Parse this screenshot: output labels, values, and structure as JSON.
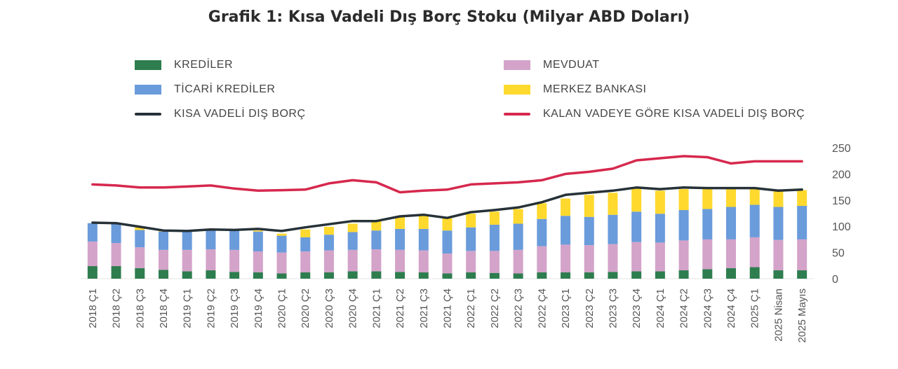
{
  "chart_data": {
    "type": "bar",
    "title": "Grafik 1: Kısa Vadeli Dış Borç Stoku (Milyar ABD Doları)",
    "categories": [
      "2018 Ç1",
      "2018 Ç2",
      "2018 Ç3",
      "2018 Ç4",
      "2019 Ç1",
      "2019 Ç2",
      "2019 Ç3",
      "2019 Ç4",
      "2020 Ç1",
      "2020 Ç2",
      "2020 Ç3",
      "2020 Ç4",
      "2021 Ç1",
      "2021 Ç2",
      "2021 Ç3",
      "2021 Ç4",
      "2022 Ç1",
      "2022 Ç2",
      "2022 Ç3",
      "2022 Ç4",
      "2023 Ç1",
      "2023 Ç2",
      "2023 Ç3",
      "2023 Ç4",
      "2024 Ç1",
      "2024 Ç2",
      "2024 Ç3",
      "2024 Ç4",
      "2025 Ç1",
      "2025 Nisan",
      "2025 Mayıs"
    ],
    "ylim": [
      0,
      250
    ],
    "yticks": [
      0,
      50,
      100,
      150,
      200,
      250
    ],
    "stacked": true,
    "series": [
      {
        "name": "KREDİLER",
        "kind": "bar",
        "color": "#2e7d4f",
        "values": [
          24,
          24,
          20,
          17,
          14,
          16,
          13,
          12,
          10,
          12,
          12,
          14,
          14,
          13,
          12,
          10,
          12,
          11,
          10,
          12,
          12,
          12,
          13,
          14,
          14,
          16,
          18,
          20,
          22,
          16,
          16
        ]
      },
      {
        "name": "MEVDUAT",
        "kind": "bar",
        "color": "#d4a3c9",
        "values": [
          47,
          44,
          40,
          38,
          41,
          40,
          42,
          40,
          40,
          40,
          42,
          41,
          42,
          42,
          42,
          38,
          41,
          42,
          45,
          50,
          53,
          52,
          53,
          56,
          55,
          57,
          57,
          55,
          57,
          58,
          59
        ]
      },
      {
        "name": "TİCARİ KREDİLER",
        "kind": "bar",
        "color": "#6a9bdb",
        "values": [
          35,
          37,
          33,
          35,
          35,
          36,
          37,
          38,
          32,
          27,
          30,
          34,
          36,
          40,
          41,
          44,
          45,
          50,
          50,
          52,
          55,
          54,
          56,
          58,
          55,
          58,
          58,
          62,
          62,
          63,
          64
        ]
      },
      {
        "name": "MERKEZ BANKASI",
        "kind": "bar",
        "color": "#ffd92e",
        "values": [
          0,
          0,
          5,
          1,
          0,
          1,
          0,
          2,
          4,
          15,
          15,
          16,
          18,
          22,
          25,
          24,
          26,
          25,
          28,
          30,
          33,
          42,
          42,
          44,
          44,
          40,
          38,
          34,
          32,
          30,
          30
        ]
      },
      {
        "name": "KISA VADELİ DIŞ BORÇ",
        "kind": "line",
        "color": "#263238",
        "values": [
          107,
          106,
          99,
          92,
          91,
          94,
          93,
          95,
          91,
          98,
          104,
          110,
          110,
          119,
          122,
          116,
          127,
          131,
          136,
          146,
          160,
          164,
          168,
          174,
          171,
          174,
          173,
          173,
          173,
          168,
          170
        ]
      },
      {
        "name": "KALAN VADEYE GÖRE KISA VADELİ DIŞ BORÇ",
        "kind": "line",
        "color": "#d6284d",
        "values": [
          180,
          178,
          174,
          174,
          176,
          178,
          172,
          168,
          169,
          170,
          182,
          188,
          184,
          165,
          168,
          170,
          180,
          182,
          184,
          188,
          200,
          204,
          210,
          226,
          230,
          234,
          232,
          220,
          224,
          224,
          224
        ]
      }
    ]
  }
}
